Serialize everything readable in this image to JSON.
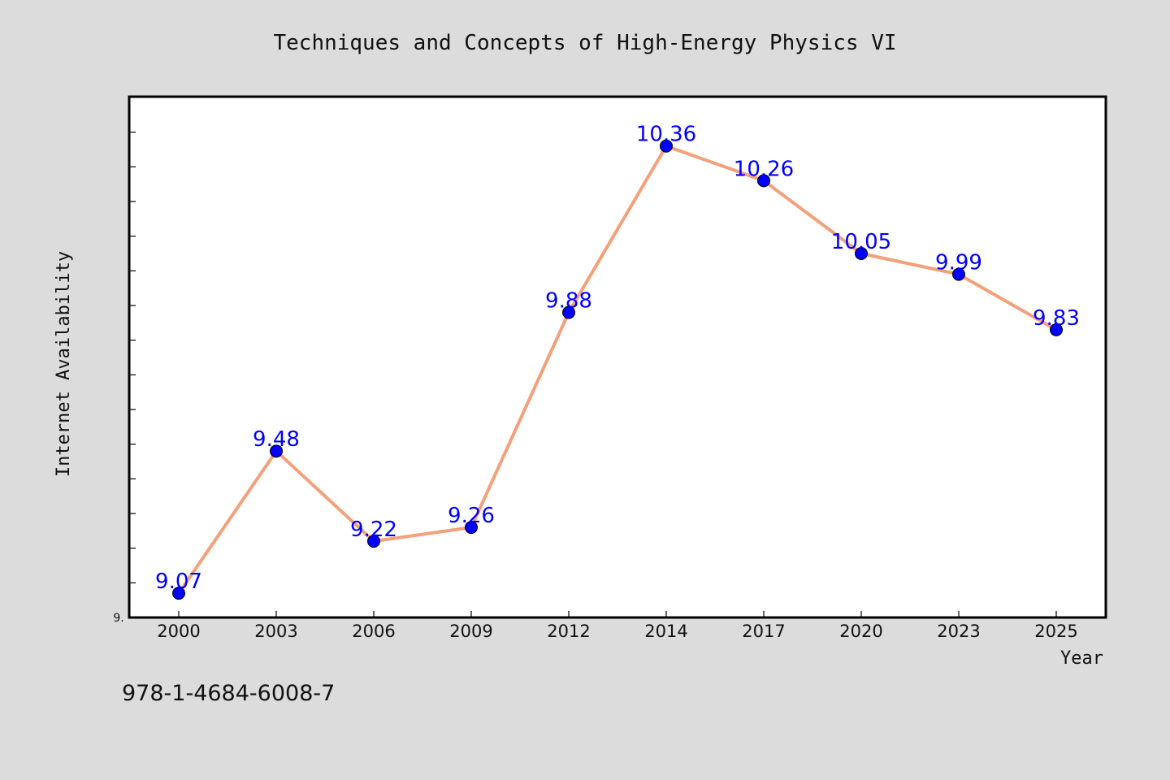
{
  "chart_data": {
    "type": "line",
    "title": "Techniques and Concepts of High-Energy Physics VI",
    "xlabel": "Year",
    "ylabel": "Internet Availability",
    "x": [
      "2000",
      "2003",
      "2006",
      "2009",
      "2012",
      "2014",
      "2017",
      "2020",
      "2023",
      "2025"
    ],
    "series": [
      {
        "values": [
          9.07,
          9.48,
          9.22,
          9.26,
          9.88,
          10.36,
          10.26,
          10.05,
          9.99,
          9.83
        ],
        "labels": [
          "9.07",
          "9.48",
          "9.22",
          "9.26",
          "9.88",
          "10.36",
          "10.26",
          "10.05",
          "9.99",
          "9.83"
        ],
        "line_color": "#f4a07a",
        "marker_color": "#0000ff"
      }
    ],
    "ylim": [
      9.0,
      10.5
    ],
    "y_tick_label": "9.",
    "grid": false,
    "legend": "none",
    "background": "#ffffff",
    "figure_background": "#dcdcdc"
  },
  "footer": {
    "isbn": "978-1-4684-6008-7"
  }
}
